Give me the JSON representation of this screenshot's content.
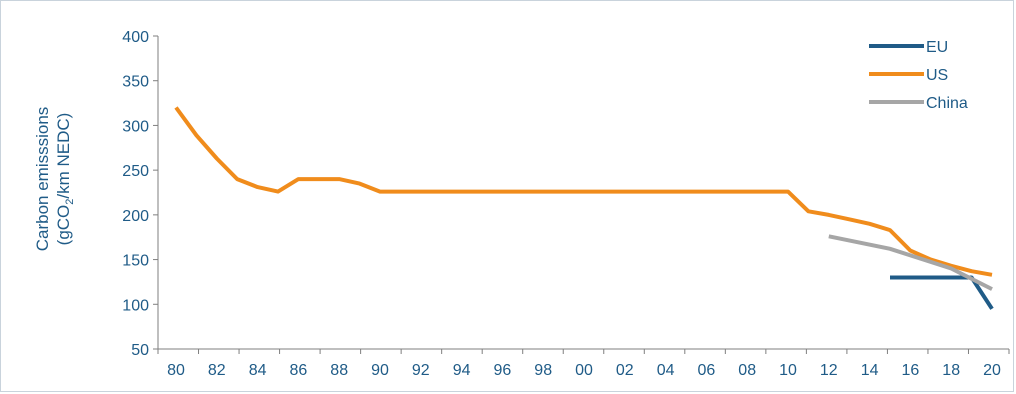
{
  "chart_data": {
    "type": "line",
    "ylabel_line1": "Carbon emisssions",
    "ylabel_prefix": "(gCO",
    "ylabel_sub": "2",
    "ylabel_suffix": "/km NEDC)",
    "ylim": [
      50,
      400
    ],
    "yticks": [
      50,
      100,
      150,
      200,
      250,
      300,
      350,
      400
    ],
    "xticks": [
      "80",
      "82",
      "84",
      "86",
      "88",
      "90",
      "92",
      "94",
      "96",
      "98",
      "00",
      "02",
      "04",
      "06",
      "08",
      "10",
      "12",
      "14",
      "16",
      "18",
      "20"
    ],
    "x_start": 1980,
    "x_end": 2020,
    "grid": false,
    "legend_position": "top-right",
    "series": [
      {
        "name": "EU",
        "color": "#1f5b87",
        "points": [
          [
            2015,
            130
          ],
          [
            2019,
            130
          ],
          [
            2020,
            95
          ]
        ]
      },
      {
        "name": "US",
        "color": "#f08c1c",
        "points": [
          [
            1980,
            320
          ],
          [
            1981,
            289
          ],
          [
            1982,
            263
          ],
          [
            1983,
            240
          ],
          [
            1984,
            231
          ],
          [
            1985,
            226
          ],
          [
            1986,
            240
          ],
          [
            1987,
            240
          ],
          [
            1988,
            240
          ],
          [
            1989,
            235
          ],
          [
            1990,
            226
          ],
          [
            1995,
            226
          ],
          [
            2000,
            226
          ],
          [
            2005,
            226
          ],
          [
            2010,
            226
          ],
          [
            2011,
            204
          ],
          [
            2012,
            200
          ],
          [
            2013,
            195
          ],
          [
            2014,
            190
          ],
          [
            2015,
            183
          ],
          [
            2016,
            160
          ],
          [
            2017,
            150
          ],
          [
            2018,
            143
          ],
          [
            2019,
            137
          ],
          [
            2020,
            133
          ]
        ]
      },
      {
        "name": "China",
        "color": "#a6a6a6",
        "points": [
          [
            2012,
            176
          ],
          [
            2015,
            162
          ],
          [
            2018,
            140
          ],
          [
            2020,
            117
          ]
        ]
      }
    ]
  }
}
